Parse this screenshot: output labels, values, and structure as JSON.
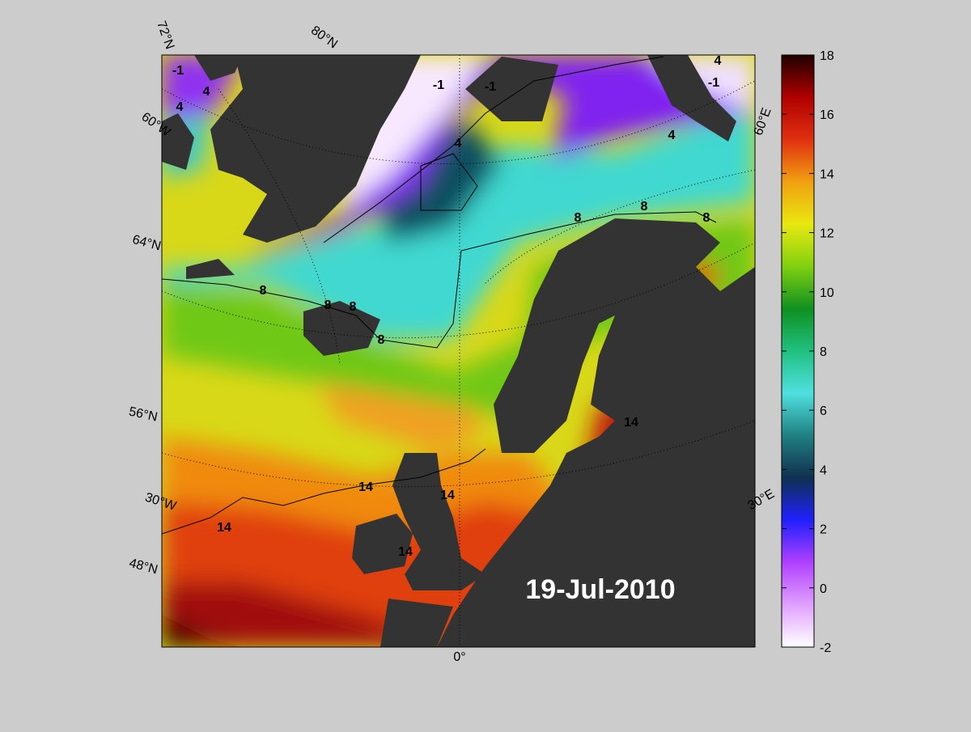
{
  "map": {
    "date": "19-Jul-2010",
    "grid_labels": [
      "72°N",
      "80°N",
      "60°W",
      "64°N",
      "56°N",
      "30°W",
      "48°N",
      "0°",
      "30°E",
      "60°E"
    ],
    "contour_labels": [
      "-1",
      "-1",
      "-1",
      "-1",
      "4",
      "4",
      "4",
      "4",
      "4",
      "8",
      "8",
      "8",
      "8",
      "8",
      "8",
      "8",
      "14",
      "14",
      "14",
      "14",
      "14"
    ]
  },
  "colorbar": {
    "ylim": [
      -2,
      18
    ],
    "yticks": [
      -2,
      0,
      2,
      4,
      6,
      8,
      10,
      12,
      14,
      16,
      18
    ],
    "colors": [
      "#ffffff",
      "#e0a0ff",
      "#b040ff",
      "#2020ff",
      "#103050",
      "#208080",
      "#50e0e0",
      "#20c080",
      "#109020",
      "#80d010",
      "#e8e810",
      "#f0a010",
      "#e03010",
      "#b00000",
      "#200000"
    ]
  }
}
